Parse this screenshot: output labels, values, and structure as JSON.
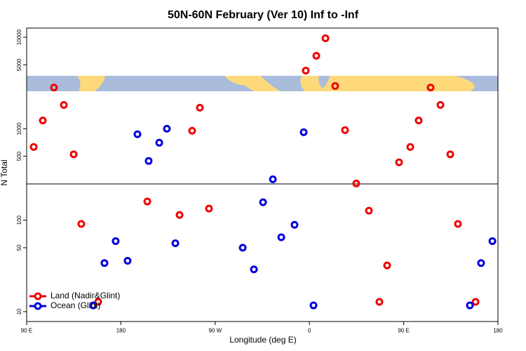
{
  "chart_data": {
    "type": "scatter",
    "title": "50N-60N February (Ver 10)   Inf to -Inf",
    "x_label": "Longitude (deg E)",
    "y_label": "N Total",
    "log_y": true,
    "legend": "bottom-left",
    "xlim": [
      90,
      540
    ],
    "xticks": [
      {
        "value": 90,
        "label": "90 E"
      },
      {
        "value": 180,
        "label": "180"
      },
      {
        "value": 270,
        "label": "90 W"
      },
      {
        "value": 360,
        "label": "0"
      },
      {
        "value": 450,
        "label": "90 E"
      },
      {
        "value": 540,
        "label": "180"
      }
    ],
    "ylim": [
      7.8,
      12600
    ],
    "yticks": [
      10,
      50,
      100,
      500,
      1000,
      5000,
      10000
    ],
    "series": [
      {
        "name": "Land (Nadir&Glint)",
        "color": "#ee0000",
        "x": [
          96.7,
          105.4,
          116.1,
          125.5,
          134.9,
          142.2,
          158.3,
          205.2,
          236,
          248,
          255.4,
          264.1,
          356.5,
          366.6,
          375.3,
          384.6,
          394,
          404.7,
          416.8,
          426.8,
          434.2,
          445.6,
          456.3,
          464.3,
          475.7,
          485.1,
          494.5,
          501.8,
          518.6
        ],
        "values": [
          631,
          1230,
          2820,
          1820,
          525,
          91,
          12.8,
          160,
          114,
          950,
          1700,
          134,
          4320,
          6270,
          9750,
          2930,
          966,
          252,
          127,
          12.8,
          32,
          429,
          631,
          1230,
          2820,
          1820,
          525,
          91,
          12.8
        ]
      },
      {
        "name": "Ocean (Glint)",
        "color": "#0000dd",
        "x": [
          153.6,
          164.3,
          175,
          186.4,
          195.8,
          206.5,
          216.6,
          223.9,
          232,
          296.3,
          307,
          315.7,
          325.1,
          333.1,
          345.8,
          354.5,
          363.9,
          513.2,
          523.9,
          534.7
        ],
        "values": [
          11.7,
          34,
          59,
          36,
          870,
          444,
          703,
          1000,
          56,
          50,
          29,
          157,
          280,
          65,
          89,
          916,
          11.7,
          11.7,
          34,
          59
        ]
      }
    ]
  }
}
